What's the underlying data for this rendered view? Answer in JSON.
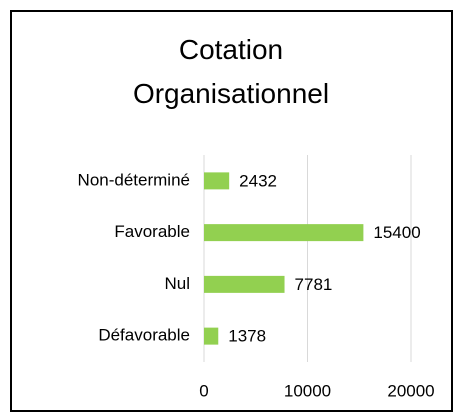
{
  "chart_data": {
    "type": "hbar",
    "title": "Cotation Organisationnel",
    "categories": [
      "Non-déterminé",
      "Favorable",
      "Nul",
      "Défavorable"
    ],
    "values": [
      2432,
      15400,
      7781,
      1378
    ],
    "color": "#92d050",
    "xlim": [
      0,
      20000
    ],
    "xticks": [
      0,
      10000,
      20000
    ],
    "grid": true
  }
}
